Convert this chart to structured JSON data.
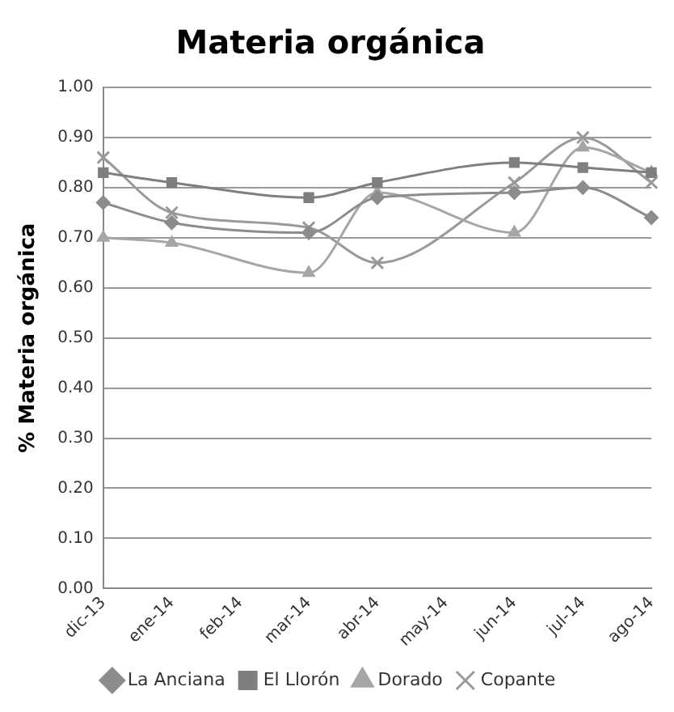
{
  "chart_data": {
    "type": "line",
    "title": "Materia orgánica",
    "ylabel": "% Materia orgánica",
    "categories": [
      "dic-13",
      "ene-14",
      "feb-14",
      "mar-14",
      "abr-14",
      "may-14",
      "jun-14",
      "jul-14",
      "ago-14"
    ],
    "ylim": [
      0,
      1
    ],
    "yticks": [
      {
        "value": 0,
        "label": "0.00"
      },
      {
        "value": 0.1,
        "label": "0.10"
      },
      {
        "value": 0.2,
        "label": "0.20"
      },
      {
        "value": 0.3,
        "label": "0.30"
      },
      {
        "value": 0.4,
        "label": "0.40"
      },
      {
        "value": 0.5,
        "label": "0.50"
      },
      {
        "value": 0.6,
        "label": "0.60"
      },
      {
        "value": 0.7,
        "label": "0.70"
      },
      {
        "value": 0.8,
        "label": "0.80"
      },
      {
        "value": 0.9,
        "label": "0.90"
      },
      {
        "value": 1,
        "label": "1.00"
      }
    ],
    "grid": "y",
    "legend": "bottom",
    "line_style": "solid",
    "series": [
      {
        "name": "La Anciana",
        "color": "#8c8c8c",
        "marker": "diamond",
        "values": [
          0.77,
          0.73,
          null,
          0.71,
          0.78,
          null,
          0.79,
          0.8,
          0.74
        ]
      },
      {
        "name": "El Llorón",
        "color": "#7f7f7f",
        "marker": "square",
        "values": [
          0.83,
          0.81,
          null,
          0.78,
          0.81,
          null,
          0.85,
          0.84,
          0.83
        ]
      },
      {
        "name": "Dorado",
        "color": "#a6a6a6",
        "marker": "triangle",
        "values": [
          0.7,
          0.69,
          null,
          0.63,
          0.79,
          null,
          0.71,
          0.88,
          0.83
        ]
      },
      {
        "name": "Copante",
        "color": "#999999",
        "marker": "cross",
        "values": [
          0.86,
          0.75,
          null,
          0.72,
          0.65,
          null,
          0.81,
          0.9,
          0.81
        ]
      }
    ]
  }
}
